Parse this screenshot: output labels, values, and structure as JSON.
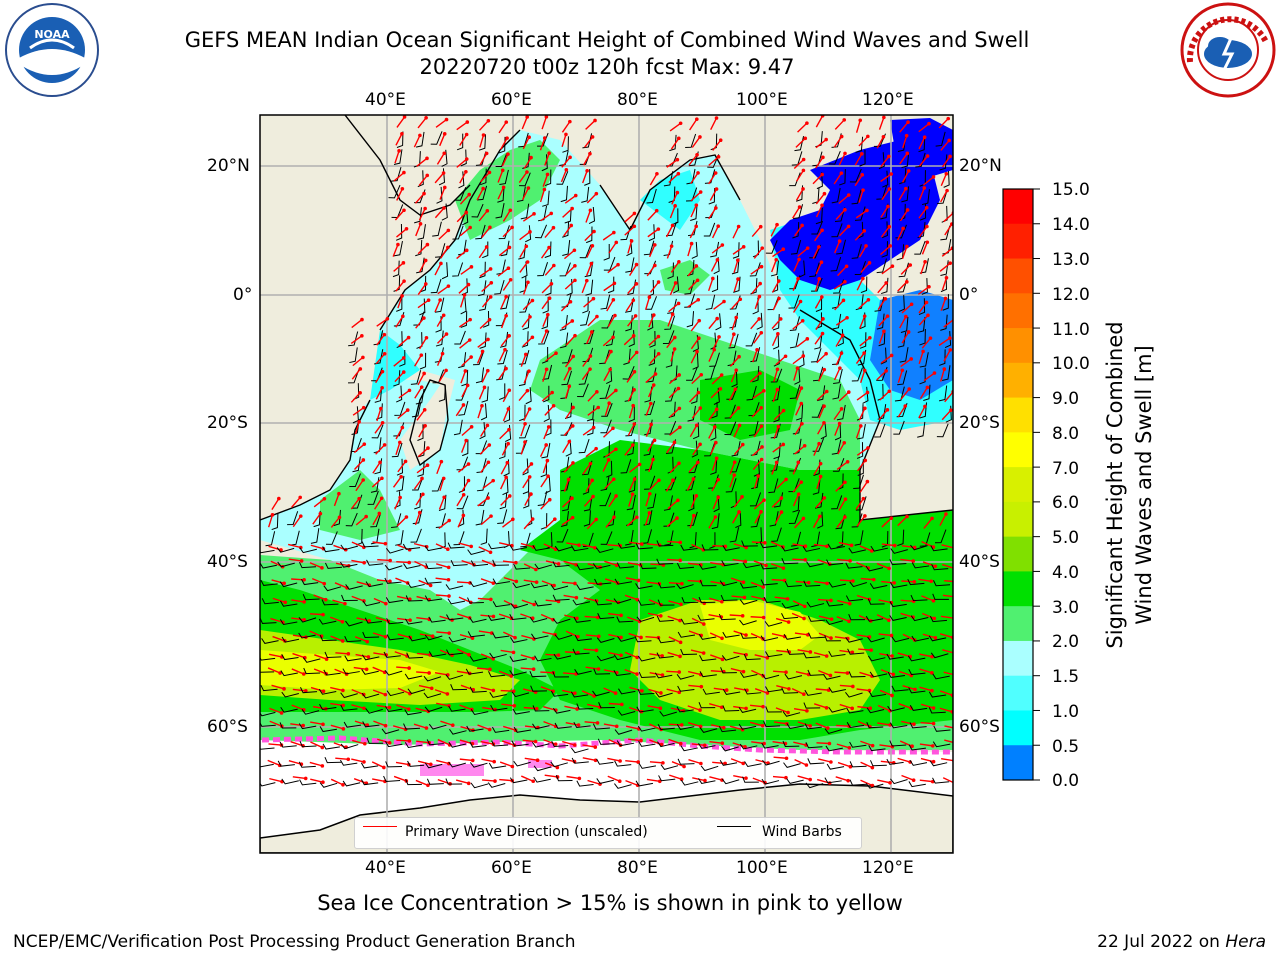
{
  "header": {
    "title_line1": "GEFS MEAN Indian Ocean Significant Height of Combined Wind Waves and Swell",
    "title_line2": "20220720 t00z 120h fcst   Max: 9.47"
  },
  "logos": {
    "left": "NOAA",
    "right": "NATIONAL WEATHER SERVICE"
  },
  "map": {
    "lon_ticks": [
      "40°E",
      "60°E",
      "80°E",
      "100°E",
      "120°E"
    ],
    "lat_ticks": [
      "20°N",
      "0°",
      "20°S",
      "40°S",
      "60°S"
    ],
    "land_color": "#efeddd",
    "legend": {
      "wave_label": "Primary Wave Direction (unscaled)",
      "barb_label": "Wind Barbs",
      "wave_color": "#ff0000",
      "barb_color": "#000000"
    }
  },
  "colorbar": {
    "title_line1": "Significant Height of Combined",
    "title_line2": "Wind Waves and Swell [m]",
    "labels": [
      "15.0",
      "14.0",
      "13.0",
      "12.0",
      "11.0",
      "10.0",
      "9.0",
      "8.0",
      "7.0",
      "6.0",
      "5.0",
      "4.0",
      "3.0",
      "2.0",
      "1.5",
      "1.0",
      "0.5",
      "0.0"
    ],
    "colors": [
      "#ff0000",
      "#ff2000",
      "#ff5000",
      "#ff7000",
      "#ff9000",
      "#ffb000",
      "#ffe000",
      "#ffff00",
      "#d8f000",
      "#c8f000",
      "#80e000",
      "#00e000",
      "#50f070",
      "#aaffff",
      "#50ffff",
      "#00ffff",
      "#0080ff",
      "#0000ff"
    ]
  },
  "note": "Sea Ice Concentration > 15% is shown in pink to yellow",
  "footer": {
    "left": "NCEP/EMC/Verification Post Processing Product Generation Branch",
    "right_date": "22 Jul 2022 on ",
    "right_host": "Hera"
  }
}
